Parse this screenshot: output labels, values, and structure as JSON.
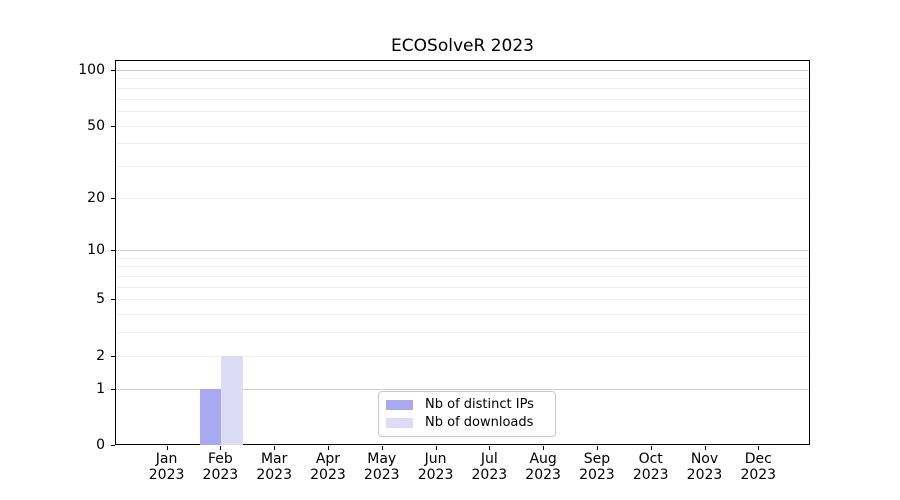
{
  "chart_data": {
    "type": "bar",
    "title": "ECOSolveR 2023",
    "x_tick_months": [
      "Jan",
      "Feb",
      "Mar",
      "Apr",
      "May",
      "Jun",
      "Jul",
      "Aug",
      "Sep",
      "Oct",
      "Nov",
      "Dec"
    ],
    "x_tick_year": "2023",
    "series": [
      {
        "name": "Nb of distinct IPs",
        "color": "#a9a9f1",
        "values": [
          0,
          1,
          0,
          0,
          0,
          0,
          0,
          0,
          0,
          0,
          0,
          0
        ]
      },
      {
        "name": "Nb of downloads",
        "color": "#dcdcf7",
        "values": [
          0,
          2,
          0,
          0,
          0,
          0,
          0,
          0,
          0,
          0,
          0,
          0
        ]
      }
    ],
    "y_axis": {
      "scale": "log1p",
      "tick_values": [
        0,
        1,
        2,
        5,
        10,
        20,
        50,
        100
      ],
      "major_gridlines": [
        1,
        10,
        100
      ],
      "minor_gridlines": [
        2,
        3,
        4,
        5,
        6,
        7,
        8,
        9,
        20,
        30,
        40,
        50,
        60,
        70,
        80,
        90
      ],
      "ylim": [
        0,
        113
      ]
    },
    "legend_location": "lower center",
    "grid": true
  }
}
